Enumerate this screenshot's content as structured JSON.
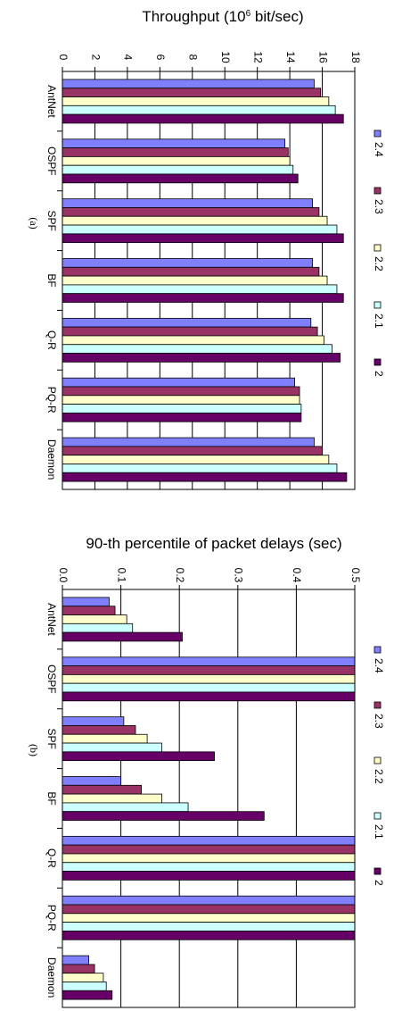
{
  "chart_data": [
    {
      "type": "bar",
      "title": "Throughput (10",
      "title_sup": "6",
      "title_rest": " bit/sec)",
      "caption": "(a)",
      "categories": [
        "AntNet",
        "OSPF",
        "SPF",
        "BF",
        "Q-R",
        "PQ-R",
        "Daemon"
      ],
      "tick_labels": [
        "0",
        "2",
        "4",
        "6",
        "8",
        "10",
        "12",
        "14",
        "16",
        "18"
      ],
      "ylim": [
        0,
        18
      ],
      "grid": true,
      "legend_placement": "right",
      "series": [
        {
          "name": "2.4",
          "color": "#8080ff",
          "values": [
            15.5,
            13.7,
            15.4,
            15.4,
            15.3,
            14.3,
            15.5
          ]
        },
        {
          "name": "2.3",
          "color": "#993366",
          "values": [
            15.9,
            13.9,
            15.8,
            15.8,
            15.7,
            14.6,
            16.0
          ]
        },
        {
          "name": "2.2",
          "color": "#ffffcc",
          "values": [
            16.4,
            14.0,
            16.3,
            16.3,
            16.1,
            14.6,
            16.4
          ]
        },
        {
          "name": "2.1",
          "color": "#ccffff",
          "values": [
            16.8,
            14.2,
            16.9,
            16.9,
            16.6,
            14.7,
            16.9
          ]
        },
        {
          "name": "2",
          "color": "#660066",
          "values": [
            17.3,
            14.5,
            17.3,
            17.3,
            17.1,
            14.7,
            17.5
          ]
        }
      ]
    },
    {
      "type": "bar",
      "title": "90-th percentile of packet delays (sec)",
      "caption": "(b)",
      "categories": [
        "AntNet",
        "OSPF",
        "SPF",
        "BF",
        "Q-R",
        "PQ-R",
        "Daemon"
      ],
      "tick_labels": [
        "0.0",
        "0.1",
        "0.2",
        "0.3",
        "0.4",
        "0.5"
      ],
      "ylim": [
        0,
        0.5
      ],
      "grid": true,
      "legend_placement": "right",
      "series": [
        {
          "name": "2.4",
          "color": "#8080ff",
          "values": [
            0.08,
            0.5,
            0.105,
            0.1,
            0.5,
            0.5,
            0.045
          ]
        },
        {
          "name": "2.3",
          "color": "#993366",
          "values": [
            0.09,
            0.5,
            0.125,
            0.135,
            0.5,
            0.5,
            0.055
          ]
        },
        {
          "name": "2.2",
          "color": "#ffffcc",
          "values": [
            0.11,
            0.5,
            0.145,
            0.17,
            0.5,
            0.5,
            0.07
          ]
        },
        {
          "name": "2.1",
          "color": "#ccffff",
          "values": [
            0.12,
            0.5,
            0.17,
            0.215,
            0.5,
            0.5,
            0.075
          ]
        },
        {
          "name": "2",
          "color": "#660066",
          "values": [
            0.205,
            0.5,
            0.26,
            0.345,
            0.5,
            0.5,
            0.085
          ]
        }
      ]
    }
  ]
}
